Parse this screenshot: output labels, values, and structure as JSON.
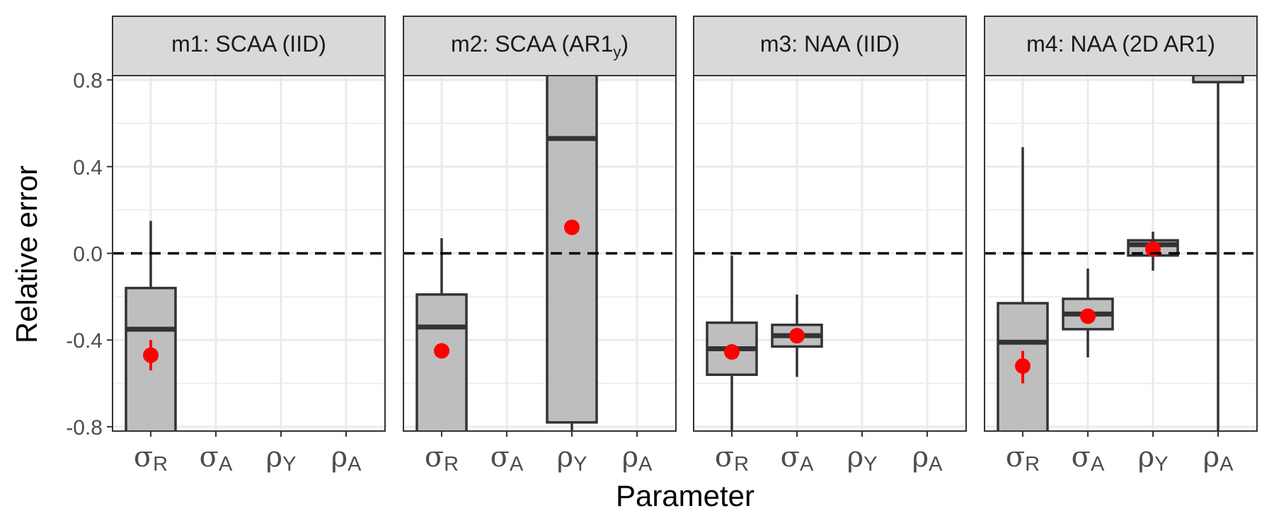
{
  "chart_data": {
    "type": "boxplot",
    "xlabel": "Parameter",
    "ylabel": "Relative error",
    "ylim": [
      -0.82,
      0.82
    ],
    "yticks": [
      -0.8,
      -0.4,
      0.0,
      0.4,
      0.8
    ],
    "ytick_labels": [
      "-0.8",
      "-0.4",
      "0.0",
      "0.4",
      "0.8"
    ],
    "reference_line": {
      "y": 0.0,
      "style": "dashed"
    },
    "grid": true,
    "parameters": [
      {
        "greek": "σ",
        "sub": "R"
      },
      {
        "greek": "σ",
        "sub": "A"
      },
      {
        "greek": "ρ",
        "sub": "Y"
      },
      {
        "greek": "ρ",
        "sub": "A"
      }
    ],
    "colors": {
      "box_fill": "#bebebe",
      "box_stroke": "#333333",
      "mean_point": "#ff0000",
      "strip_fill": "#d9d9d9",
      "panel_border": "#333333",
      "grid": "#ebebeb"
    },
    "panels": [
      {
        "label": "m1:  SCAA  (IID)",
        "boxes": [
          {
            "param": 0,
            "whisker_low": -0.9,
            "q1": -0.9,
            "median": -0.35,
            "q3": -0.16,
            "whisker_high": 0.15,
            "mean": -0.47,
            "mean_ci": [
              -0.54,
              -0.4
            ]
          }
        ]
      },
      {
        "label": "m2:  SCAA (AR1",
        "label_sub": "y",
        "label_end": ")",
        "boxes": [
          {
            "param": 0,
            "whisker_low": -0.9,
            "q1": -0.9,
            "median": -0.34,
            "q3": -0.19,
            "whisker_high": 0.07,
            "mean": -0.45,
            "mean_ci": null
          },
          {
            "param": 2,
            "whisker_low": -0.9,
            "q1": -0.78,
            "median": 0.53,
            "q3": 0.9,
            "whisker_high": 0.9,
            "mean": 0.12,
            "mean_ci": null
          }
        ]
      },
      {
        "label": "m3:  NAA  (IID)",
        "boxes": [
          {
            "param": 0,
            "whisker_low": -0.9,
            "q1": -0.56,
            "median": -0.44,
            "q3": -0.32,
            "whisker_high": -0.01,
            "mean": -0.455,
            "mean_ci": [
              -0.49,
              -0.42
            ]
          },
          {
            "param": 1,
            "whisker_low": -0.57,
            "q1": -0.43,
            "median": -0.38,
            "q3": -0.33,
            "whisker_high": -0.19,
            "mean": -0.38,
            "mean_ci": null
          }
        ]
      },
      {
        "label": "m4:  NAA  (2D AR1)",
        "boxes": [
          {
            "param": 0,
            "whisker_low": -0.9,
            "q1": -0.9,
            "median": -0.41,
            "q3": -0.23,
            "whisker_high": 0.49,
            "mean": -0.52,
            "mean_ci": [
              -0.6,
              -0.45
            ]
          },
          {
            "param": 1,
            "whisker_low": -0.48,
            "q1": -0.35,
            "median": -0.28,
            "q3": -0.21,
            "whisker_high": -0.07,
            "mean": -0.29,
            "mean_ci": null
          },
          {
            "param": 2,
            "whisker_low": -0.08,
            "q1": -0.01,
            "median": 0.04,
            "q3": 0.06,
            "whisker_high": 0.1,
            "mean": 0.02,
            "mean_ci": null
          },
          {
            "param": 3,
            "whisker_low": -0.9,
            "q1": 0.79,
            "median": 0.9,
            "q3": 0.9,
            "whisker_high": 0.9,
            "mean": null,
            "mean_ci": null
          }
        ]
      }
    ]
  }
}
